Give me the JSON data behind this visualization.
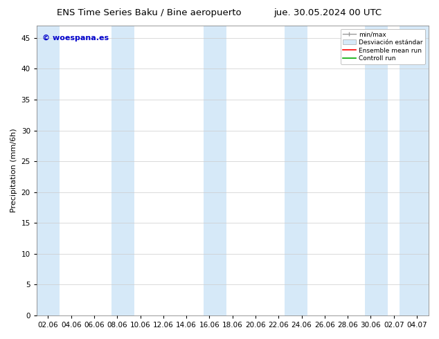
{
  "title_left": "ENS Time Series Baku / Bine aeropuerto",
  "title_right": "jue. 30.05.2024 00 UTC",
  "ylabel": "Precipitation (mm/6h)",
  "watermark": "© woespana.es",
  "background_color": "#ffffff",
  "plot_bg_color": "#ffffff",
  "ylim": [
    0,
    47
  ],
  "yticks": [
    0,
    5,
    10,
    15,
    20,
    25,
    30,
    35,
    40,
    45
  ],
  "xtick_labels": [
    "02.06",
    "04.06",
    "06.06",
    "08.06",
    "10.06",
    "12.06",
    "14.06",
    "16.06",
    "18.06",
    "20.06",
    "22.06",
    "24.06",
    "26.06",
    "28.06",
    "30.06",
    "02.07",
    "04.07"
  ],
  "band_color": "#d6e9f8",
  "legend_entries": [
    {
      "label": "min/max",
      "type": "errorbar",
      "color": "#999999"
    },
    {
      "label": "Desviación estándar",
      "type": "box",
      "color": "#d6e9f8"
    },
    {
      "label": "Ensemble mean run",
      "type": "line",
      "color": "#ff0000"
    },
    {
      "label": "Controll run",
      "type": "line",
      "color": "#00aa00"
    }
  ],
  "title_fontsize": 9.5,
  "label_fontsize": 8,
  "tick_fontsize": 7.5,
  "watermark_color": "#0000cc",
  "watermark_fontsize": 8
}
